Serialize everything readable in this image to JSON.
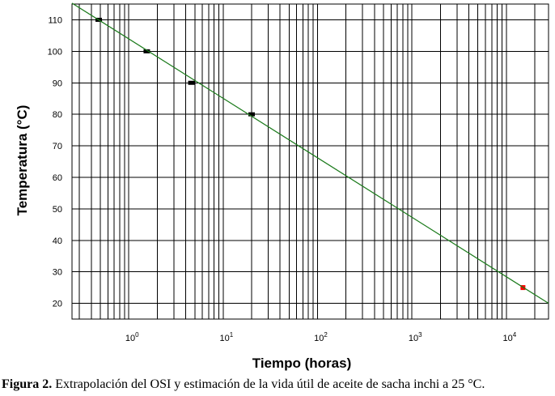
{
  "caption": {
    "label": "Figura 2.",
    "text": " Extrapolación del OSI y estimación de la vida útil de aceite de sacha inchi a 25 °C."
  },
  "chart_data": {
    "type": "scatter",
    "xlabel": "Tiempo (horas)",
    "ylabel": "Temperatura (°C)",
    "xscale": "log",
    "xlim": [
      0.25,
      28000
    ],
    "ylim": [
      15,
      115
    ],
    "grid": true,
    "yticks": [
      20,
      30,
      40,
      50,
      60,
      70,
      80,
      90,
      100,
      110
    ],
    "xticks": [
      {
        "value": 1,
        "base": "10",
        "exp": "0"
      },
      {
        "value": 10,
        "base": "10",
        "exp": "1"
      },
      {
        "value": 100,
        "base": "10",
        "exp": "2"
      },
      {
        "value": 1000,
        "base": "10",
        "exp": "3"
      },
      {
        "value": 10000,
        "base": "10",
        "exp": "4"
      }
    ],
    "series": [
      {
        "kind": "points",
        "color": "#000000",
        "points": [
          [
            0.48,
            110
          ],
          [
            1.55,
            100
          ],
          [
            4.6,
            90
          ],
          [
            20,
            80
          ]
        ]
      },
      {
        "kind": "points",
        "color": "#ff0000",
        "points": [
          [
            15000,
            25
          ]
        ]
      },
      {
        "kind": "line",
        "color": "#1a7a1a",
        "points": [
          [
            0.25,
            115.3
          ],
          [
            28000,
            20
          ]
        ]
      }
    ]
  }
}
